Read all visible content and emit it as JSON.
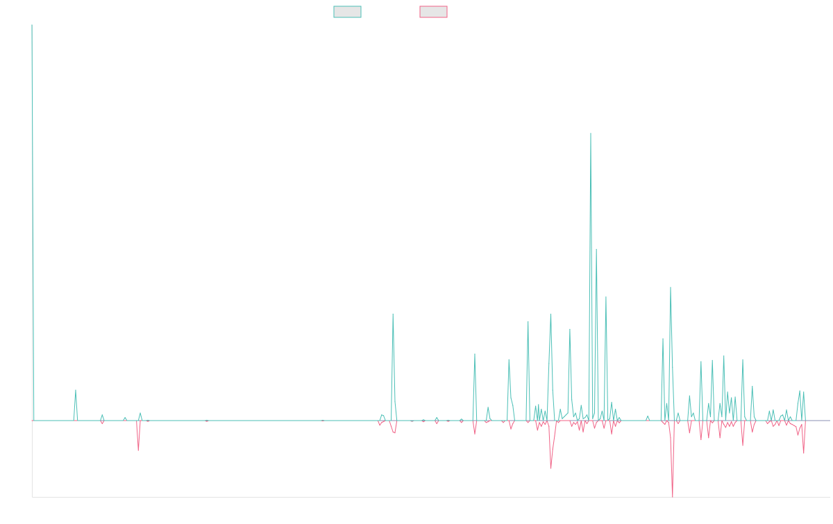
{
  "colors": {
    "series_a": "#4bbfb6",
    "series_b": "#f06286",
    "legend_fill": "#e6e6e6",
    "axis": "#e3e3e3",
    "zero_line": "#8a8fb3"
  },
  "chart_data": {
    "type": "line",
    "title": "",
    "xlabel": "",
    "ylabel": "",
    "grid": false,
    "legend": "top-center",
    "x_range": [
      0,
      420
    ],
    "ylim": [
      -20,
      104
    ],
    "series": [
      {
        "points": [
          [
            0,
            104
          ],
          [
            1,
            0
          ],
          [
            22,
            0
          ],
          [
            23,
            8
          ],
          [
            24,
            0
          ],
          [
            36,
            0
          ],
          [
            37,
            1.5
          ],
          [
            38,
            0
          ],
          [
            48,
            0
          ],
          [
            49,
            0.8
          ],
          [
            50,
            0
          ],
          [
            56,
            0
          ],
          [
            57,
            2
          ],
          [
            58,
            0
          ],
          [
            60,
            0
          ],
          [
            61,
            0.1
          ],
          [
            62,
            0
          ],
          [
            91,
            0
          ],
          [
            92,
            0.1
          ],
          [
            93,
            0
          ],
          [
            152,
            0
          ],
          [
            153,
            0.1
          ],
          [
            154,
            0
          ],
          [
            183,
            0
          ],
          [
            184,
            1.5
          ],
          [
            185,
            1.3
          ],
          [
            186,
            0
          ],
          [
            189,
            0
          ],
          [
            190,
            28
          ],
          [
            191,
            5
          ],
          [
            192,
            0
          ],
          [
            199,
            0
          ],
          [
            200,
            -0.1
          ],
          [
            201,
            0
          ],
          [
            205,
            0
          ],
          [
            206,
            0.2
          ],
          [
            207,
            0
          ],
          [
            212,
            0
          ],
          [
            213,
            0.8
          ],
          [
            214,
            0
          ],
          [
            218,
            0
          ],
          [
            219,
            0.1
          ],
          [
            220,
            0
          ],
          [
            225,
            0
          ],
          [
            226,
            0.4
          ],
          [
            227,
            0
          ],
          [
            232,
            0
          ],
          [
            233,
            17.5
          ],
          [
            234,
            0
          ],
          [
            239,
            0
          ],
          [
            240,
            3.5
          ],
          [
            241,
            0.5
          ],
          [
            242,
            0
          ],
          [
            250,
            0
          ],
          [
            251,
            16
          ],
          [
            252,
            6
          ],
          [
            253,
            4
          ],
          [
            254,
            0
          ],
          [
            260,
            0
          ],
          [
            261,
            26
          ],
          [
            262,
            0
          ],
          [
            264,
            0
          ],
          [
            265,
            3.8
          ],
          [
            266,
            0
          ],
          [
            266.5,
            4.2
          ],
          [
            267,
            0
          ],
          [
            268,
            3
          ],
          [
            269,
            0
          ],
          [
            270,
            2.5
          ],
          [
            271,
            0
          ],
          [
            272,
            15
          ],
          [
            273,
            28
          ],
          [
            274,
            8
          ],
          [
            275,
            0
          ],
          [
            277,
            0
          ],
          [
            278,
            3
          ],
          [
            279,
            0.5
          ],
          [
            280,
            1
          ],
          [
            281,
            1.5
          ],
          [
            282,
            2
          ],
          [
            283,
            24
          ],
          [
            284,
            5.5
          ],
          [
            285,
            1
          ],
          [
            286,
            2
          ],
          [
            287,
            0
          ],
          [
            288,
            0.5
          ],
          [
            289,
            4
          ],
          [
            290,
            0.5
          ],
          [
            291,
            0.8
          ],
          [
            292,
            1.5
          ],
          [
            293,
            0
          ],
          [
            294,
            75.5
          ],
          [
            295,
            0.5
          ],
          [
            296,
            2
          ],
          [
            297,
            45
          ],
          [
            298,
            0
          ],
          [
            299,
            0.5
          ],
          [
            300,
            2.5
          ],
          [
            301,
            0
          ],
          [
            302,
            32.5
          ],
          [
            303,
            0
          ],
          [
            304,
            0.5
          ],
          [
            305,
            4.8
          ],
          [
            306,
            0
          ],
          [
            307,
            3
          ],
          [
            308,
            0
          ],
          [
            309,
            0.8
          ],
          [
            310,
            0
          ],
          [
            323,
            0
          ],
          [
            324,
            1.2
          ],
          [
            325,
            0
          ],
          [
            331,
            0
          ],
          [
            332,
            21.5
          ],
          [
            333,
            0
          ],
          [
            334,
            4.5
          ],
          [
            335,
            0
          ],
          [
            336,
            35
          ],
          [
            337,
            14
          ],
          [
            338,
            0
          ],
          [
            339,
            0
          ],
          [
            340,
            2
          ],
          [
            341,
            0
          ],
          [
            345,
            0
          ],
          [
            346,
            6.5
          ],
          [
            347,
            1
          ],
          [
            348,
            2
          ],
          [
            349,
            0
          ],
          [
            351,
            0
          ],
          [
            352,
            15.5
          ],
          [
            353,
            0
          ],
          [
            355,
            0
          ],
          [
            356,
            4.5
          ],
          [
            357,
            1
          ],
          [
            358,
            15.8
          ],
          [
            359,
            0
          ],
          [
            361,
            0
          ],
          [
            362,
            4.5
          ],
          [
            363,
            1
          ],
          [
            364,
            17
          ],
          [
            365,
            0
          ],
          [
            366,
            7.5
          ],
          [
            367,
            2
          ],
          [
            368,
            6
          ],
          [
            369,
            0
          ],
          [
            370,
            6.2
          ],
          [
            371,
            0
          ],
          [
            373,
            0
          ],
          [
            374,
            16
          ],
          [
            375,
            1
          ],
          [
            376,
            0
          ],
          [
            378,
            0
          ],
          [
            379,
            9
          ],
          [
            380,
            1
          ],
          [
            381,
            0
          ],
          [
            387,
            0
          ],
          [
            388,
            2.5
          ],
          [
            389,
            0
          ],
          [
            390,
            2.8
          ],
          [
            391,
            0
          ],
          [
            393,
            0
          ],
          [
            394,
            1.2
          ],
          [
            395,
            1.5
          ],
          [
            396,
            0
          ],
          [
            397,
            2.8
          ],
          [
            398,
            0
          ],
          [
            399,
            1
          ],
          [
            400,
            0
          ],
          [
            402,
            0
          ],
          [
            403,
            4.5
          ],
          [
            404,
            7.8
          ],
          [
            405,
            0
          ],
          [
            406,
            7.5
          ],
          [
            407,
            0
          ]
        ]
      },
      {
        "points": [
          [
            0,
            0
          ],
          [
            36,
            0
          ],
          [
            37,
            -0.8
          ],
          [
            38,
            0
          ],
          [
            55,
            0
          ],
          [
            56,
            -7.8
          ],
          [
            57,
            0
          ],
          [
            60,
            0
          ],
          [
            61,
            -0.2
          ],
          [
            62,
            0
          ],
          [
            91,
            0
          ],
          [
            92,
            -0.2
          ],
          [
            93,
            0
          ],
          [
            152,
            0
          ],
          [
            153,
            -0.1
          ],
          [
            154,
            0
          ],
          [
            182,
            0
          ],
          [
            183,
            -1.2
          ],
          [
            184,
            -0.5
          ],
          [
            186,
            0
          ],
          [
            188,
            0
          ],
          [
            189,
            -1.5
          ],
          [
            190,
            -3
          ],
          [
            191,
            -3.2
          ],
          [
            192,
            0
          ],
          [
            199,
            0
          ],
          [
            200,
            -0.2
          ],
          [
            201,
            0
          ],
          [
            205,
            0
          ],
          [
            206,
            -0.3
          ],
          [
            207,
            0
          ],
          [
            212,
            0
          ],
          [
            213,
            -0.8
          ],
          [
            214,
            0
          ],
          [
            218,
            0
          ],
          [
            219,
            -0.2
          ],
          [
            220,
            0
          ],
          [
            225,
            0
          ],
          [
            226,
            -0.5
          ],
          [
            227,
            0
          ],
          [
            232,
            0
          ],
          [
            233,
            -3.5
          ],
          [
            234,
            0
          ],
          [
            238,
            0
          ],
          [
            239,
            -0.5
          ],
          [
            240,
            -0.3
          ],
          [
            241,
            0
          ],
          [
            247,
            0
          ],
          [
            248,
            -0.5
          ],
          [
            249,
            0
          ],
          [
            251,
            0
          ],
          [
            252,
            -2.2
          ],
          [
            253,
            -0.8
          ],
          [
            254,
            0
          ],
          [
            260,
            0
          ],
          [
            261,
            -0.5
          ],
          [
            262,
            0
          ],
          [
            265,
            0
          ],
          [
            266,
            -2.5
          ],
          [
            267,
            -0.5
          ],
          [
            268,
            -1.5
          ],
          [
            269,
            -0.3
          ],
          [
            270,
            -1
          ],
          [
            271,
            0
          ],
          [
            272,
            -1.5
          ],
          [
            273,
            -12.5
          ],
          [
            274,
            -7.5
          ],
          [
            275,
            -4
          ],
          [
            276,
            0
          ],
          [
            277,
            -0.5
          ],
          [
            278,
            0
          ],
          [
            283,
            0
          ],
          [
            284,
            -1.5
          ],
          [
            285,
            -0.5
          ],
          [
            286,
            -1
          ],
          [
            287,
            -0.3
          ],
          [
            288,
            -2.5
          ],
          [
            289,
            0
          ],
          [
            290,
            -3
          ],
          [
            291,
            0
          ],
          [
            292,
            -0.8
          ],
          [
            293,
            0
          ],
          [
            295,
            0
          ],
          [
            296,
            -2
          ],
          [
            297,
            -0.5
          ],
          [
            298,
            0
          ],
          [
            300,
            0
          ],
          [
            301,
            -2
          ],
          [
            302,
            0
          ],
          [
            304,
            0
          ],
          [
            305,
            -3.5
          ],
          [
            306,
            0
          ],
          [
            307,
            -1.5
          ],
          [
            308,
            0
          ],
          [
            309,
            -0.6
          ],
          [
            310,
            0
          ],
          [
            331,
            0
          ],
          [
            332,
            -0.5
          ],
          [
            333,
            -1
          ],
          [
            334,
            0
          ],
          [
            335,
            -0.5
          ],
          [
            336,
            -4.5
          ],
          [
            337,
            -20
          ],
          [
            338,
            0
          ],
          [
            339,
            0
          ],
          [
            340,
            -0.8
          ],
          [
            341,
            0
          ],
          [
            345,
            0
          ],
          [
            346,
            -3.2
          ],
          [
            347,
            0
          ],
          [
            351,
            0
          ],
          [
            352,
            -5
          ],
          [
            353,
            0
          ],
          [
            355,
            0
          ],
          [
            356,
            -4.5
          ],
          [
            357,
            0
          ],
          [
            358,
            -0.6
          ],
          [
            359,
            0
          ],
          [
            361,
            0
          ],
          [
            362,
            -4.5
          ],
          [
            363,
            0
          ],
          [
            364,
            -1
          ],
          [
            365,
            -1.8
          ],
          [
            366,
            -0.5
          ],
          [
            367,
            -1.5
          ],
          [
            368,
            -0.3
          ],
          [
            369,
            -1.5
          ],
          [
            370,
            -0.5
          ],
          [
            371,
            0
          ],
          [
            373,
            0
          ],
          [
            374,
            -6.5
          ],
          [
            375,
            0
          ],
          [
            378,
            0
          ],
          [
            379,
            -3
          ],
          [
            380,
            -1
          ],
          [
            381,
            0
          ],
          [
            386,
            0
          ],
          [
            387,
            -0.8
          ],
          [
            388,
            -0.3
          ],
          [
            389,
            0
          ],
          [
            390,
            -1.5
          ],
          [
            391,
            -1
          ],
          [
            392,
            0
          ],
          [
            393,
            -1.3
          ],
          [
            394,
            0
          ],
          [
            396,
            0
          ],
          [
            397,
            -1.2
          ],
          [
            398,
            0
          ],
          [
            399,
            -0.8
          ],
          [
            400,
            -1
          ],
          [
            401,
            -1.3
          ],
          [
            402,
            -1.6
          ],
          [
            403,
            -3.8
          ],
          [
            404,
            -2
          ],
          [
            405,
            -1
          ],
          [
            406,
            -8.5
          ],
          [
            407,
            0
          ]
        ]
      }
    ]
  }
}
